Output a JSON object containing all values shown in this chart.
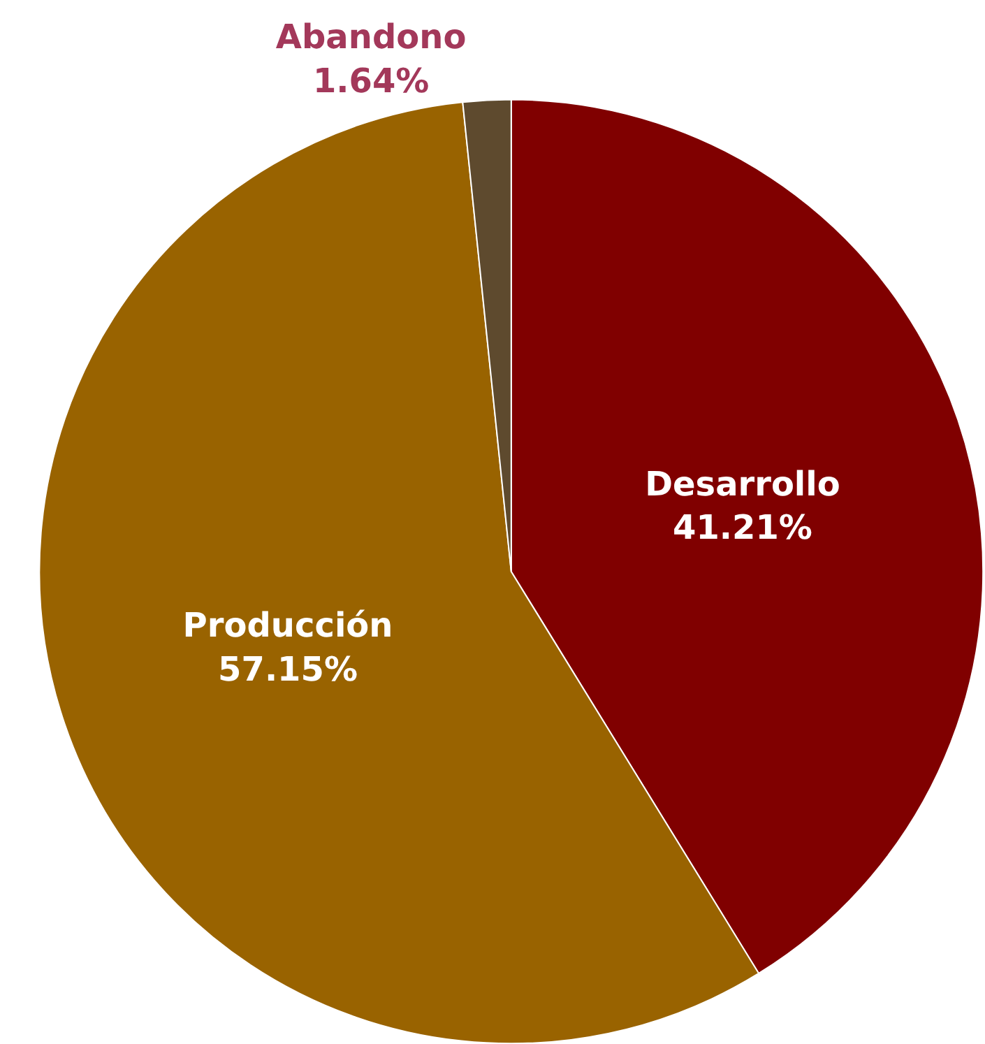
{
  "chart_data": {
    "type": "pie",
    "categories": [
      "Desarrollo",
      "Producción",
      "Abandono"
    ],
    "values": [
      41.21,
      57.15,
      1.64
    ],
    "value_labels": [
      "41.21%",
      "57.15%",
      "1.64%"
    ],
    "colors": [
      "#800000",
      "#996300",
      "#5e4a2e"
    ],
    "legend": false
  }
}
